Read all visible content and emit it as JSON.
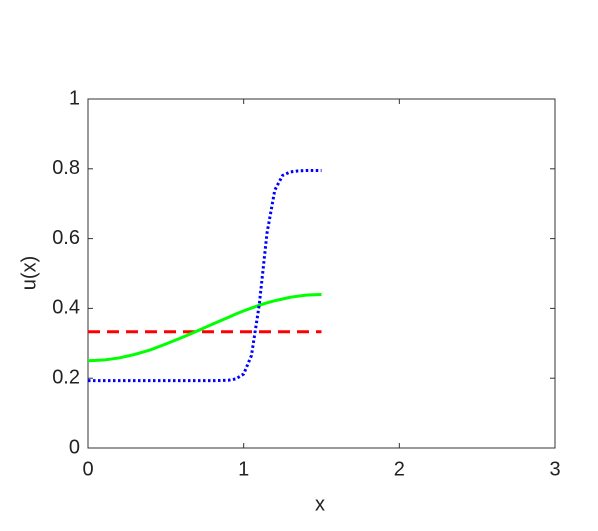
{
  "chart_data": {
    "type": "line",
    "xlabel": "x",
    "ylabel": "u(x)",
    "x": [
      0,
      0.1,
      0.2,
      0.3,
      0.4,
      0.5,
      0.6,
      0.7,
      0.8,
      0.9,
      0.95,
      1.0,
      1.05,
      1.1,
      1.15,
      1.2,
      1.25,
      1.3,
      1.35,
      1.4,
      1.45,
      1.5
    ],
    "series": [
      {
        "color": "#ff0000",
        "linestyle": "dashed",
        "values": [
          0.333,
          0.333,
          0.333,
          0.333,
          0.333,
          0.333,
          0.333,
          0.333,
          0.333,
          0.333,
          0.333,
          0.333,
          0.333,
          0.333,
          0.333,
          0.333,
          0.333,
          0.333,
          0.333,
          0.333,
          0.333,
          0.333
        ]
      },
      {
        "color": "#00ff00",
        "linestyle": "solid",
        "values": [
          0.25,
          0.252,
          0.258,
          0.268,
          0.281,
          0.298,
          0.316,
          0.335,
          0.355,
          0.374,
          0.384,
          0.393,
          0.401,
          0.409,
          0.416,
          0.422,
          0.427,
          0.432,
          0.435,
          0.438,
          0.439,
          0.44
        ]
      },
      {
        "color": "#0000ff",
        "linestyle": "dotted",
        "values": [
          0.193,
          0.193,
          0.193,
          0.193,
          0.193,
          0.193,
          0.193,
          0.193,
          0.193,
          0.194,
          0.198,
          0.212,
          0.265,
          0.41,
          0.616,
          0.739,
          0.781,
          0.791,
          0.794,
          0.795,
          0.795,
          0.795
        ]
      }
    ],
    "xlim": [
      0,
      3
    ],
    "xticks": [
      0,
      1,
      2,
      3
    ],
    "ylim": [
      0,
      1
    ],
    "yticks": [
      0,
      0.2,
      0.4,
      0.6,
      0.8,
      1
    ]
  }
}
